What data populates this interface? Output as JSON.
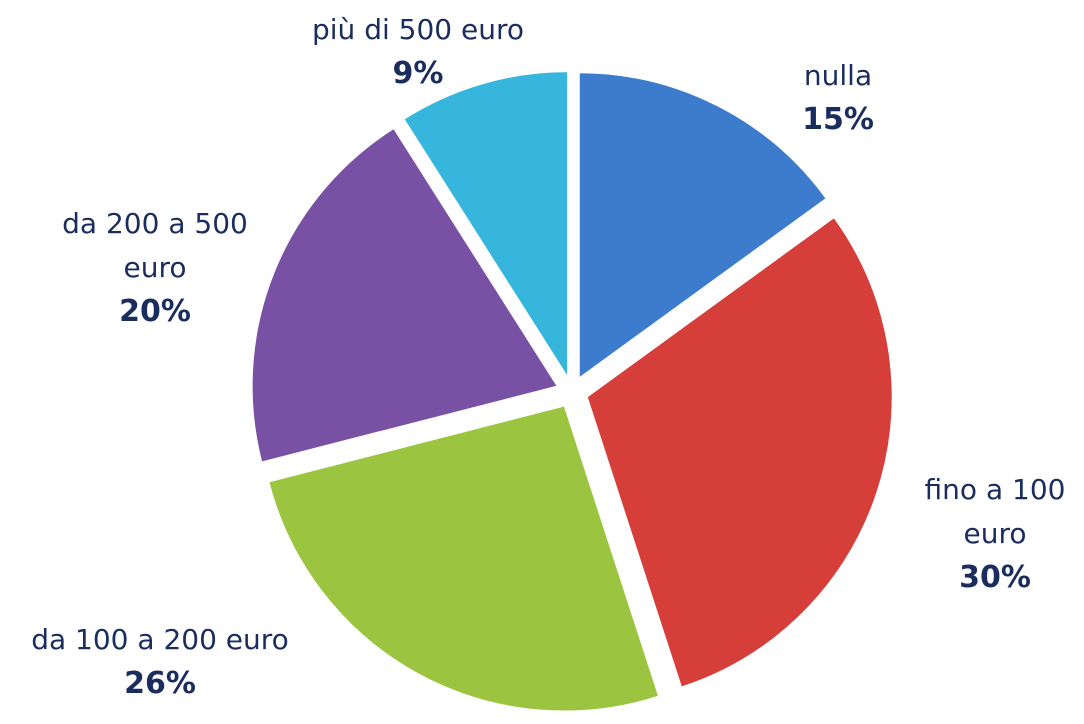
{
  "chart_data": {
    "type": "pie",
    "categories": [
      "nulla",
      "fino a 100 euro",
      "da 100 a 200 euro",
      "da 200 a 500 euro",
      "più di 500 euro"
    ],
    "values": [
      15,
      30,
      26,
      20,
      9
    ],
    "value_labels": [
      "15%",
      "30%",
      "26%",
      "20%",
      "9%"
    ],
    "colors": [
      "#3d7ccc",
      "#d63e3a",
      "#9bc440",
      "#7851a5",
      "#36b6dc"
    ]
  }
}
